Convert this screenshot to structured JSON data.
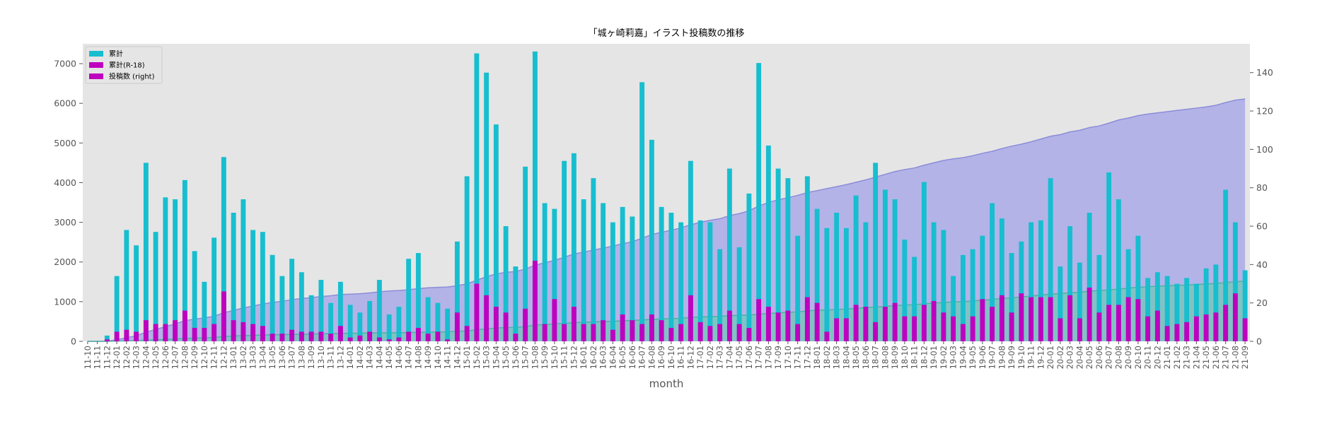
{
  "chart_data": {
    "type": "bar",
    "title": "「城ヶ崎莉嘉」イラスト投稿数の推移",
    "xlabel": "month",
    "ylabel": "",
    "ylim": [
      0,
      7500
    ],
    "y2lim": [
      0,
      155
    ],
    "yticks": [
      0,
      1000,
      2000,
      3000,
      4000,
      5000,
      6000,
      7000
    ],
    "y2ticks": [
      0,
      20,
      40,
      60,
      80,
      100,
      120,
      140
    ],
    "grid": false,
    "legend_position": "top-left",
    "colors": {
      "plot_bg": "#e5e5e5",
      "bar_total": "#17becf",
      "bar_r18": "#bf00bf",
      "area_total": "#b3b3e8",
      "area_total_line": "#8c8cd9",
      "area_r18": "#73c7b8",
      "area_r18_line": "#4db3a0"
    },
    "categories": [
      "11-10",
      "11-11",
      "11-12",
      "12-01",
      "12-02",
      "12-03",
      "12-04",
      "12-05",
      "12-06",
      "12-07",
      "12-08",
      "12-09",
      "12-10",
      "12-11",
      "12-12",
      "13-01",
      "13-02",
      "13-03",
      "13-04",
      "13-05",
      "13-06",
      "13-07",
      "13-08",
      "13-09",
      "13-10",
      "13-11",
      "13-12",
      "14-01",
      "14-02",
      "14-03",
      "14-04",
      "14-05",
      "14-06",
      "14-07",
      "14-08",
      "14-09",
      "14-10",
      "14-11",
      "14-12",
      "15-01",
      "15-02",
      "15-03",
      "15-04",
      "15-05",
      "15-06",
      "15-07",
      "15-08",
      "15-09",
      "15-10",
      "15-11",
      "15-12",
      "16-01",
      "16-02",
      "16-03",
      "16-04",
      "16-05",
      "16-06",
      "16-07",
      "16-08",
      "16-09",
      "16-10",
      "16-11",
      "16-12",
      "17-01",
      "17-02",
      "17-03",
      "17-04",
      "17-05",
      "17-06",
      "17-07",
      "17-08",
      "17-09",
      "17-10",
      "17-11",
      "17-12",
      "18-01",
      "18-02",
      "18-03",
      "18-04",
      "18-05",
      "18-06",
      "18-07",
      "18-08",
      "18-09",
      "18-10",
      "18-11",
      "18-12",
      "19-01",
      "19-02",
      "19-03",
      "19-04",
      "19-05",
      "19-06",
      "19-07",
      "19-08",
      "19-09",
      "19-10",
      "19-11",
      "19-12",
      "20-01",
      "20-02",
      "20-03",
      "20-04",
      "20-05",
      "20-06",
      "20-07",
      "20-08",
      "20-09",
      "20-10",
      "20-11",
      "20-12",
      "21-01",
      "21-02",
      "21-03",
      "21-04",
      "21-05",
      "21-06",
      "21-07",
      "21-08",
      "21-09"
    ],
    "series": [
      {
        "name": "累計",
        "kind": "bar",
        "axis": "right",
        "values": [
          0,
          0,
          3,
          34,
          58,
          50,
          93,
          57,
          75,
          74,
          84,
          47,
          31,
          54,
          96,
          67,
          74,
          58,
          57,
          45,
          34,
          43,
          36,
          24,
          32,
          20,
          31,
          19,
          15,
          21,
          32,
          14,
          18,
          43,
          46,
          23,
          20,
          17,
          52,
          86,
          150,
          140,
          113,
          60,
          39,
          91,
          151,
          72,
          69,
          94,
          98,
          74,
          85,
          72,
          62,
          70,
          65,
          135,
          105,
          70,
          67,
          62,
          94,
          63,
          62,
          48,
          90,
          49,
          77,
          145,
          102,
          90,
          85,
          55,
          86,
          69,
          59,
          67,
          59,
          76,
          62,
          93,
          79,
          74,
          53,
          44,
          83,
          62,
          58,
          34,
          45,
          48,
          55,
          72,
          64,
          46,
          52,
          62,
          63,
          85,
          39,
          60,
          41,
          67,
          45,
          88,
          74,
          48,
          55,
          33,
          36,
          34,
          30,
          33,
          30,
          38,
          40,
          79,
          62,
          37
        ]
      },
      {
        "name": "累計(R-18)",
        "kind": "bar",
        "axis": "right",
        "values": [
          0,
          0,
          1,
          5,
          6,
          5,
          11,
          9,
          9,
          11,
          16,
          7,
          7,
          9,
          26,
          11,
          10,
          9,
          8,
          4,
          4,
          6,
          5,
          5,
          5,
          4,
          8,
          2,
          3,
          5,
          2,
          1,
          2,
          5,
          7,
          4,
          5,
          1,
          15,
          8,
          30,
          24,
          18,
          15,
          4,
          17,
          42,
          9,
          22,
          9,
          18,
          9,
          9,
          11,
          6,
          14,
          11,
          9,
          14,
          11,
          7,
          9,
          24,
          10,
          8,
          9,
          16,
          9,
          7,
          22,
          18,
          15,
          16,
          9,
          23,
          20,
          5,
          12,
          12,
          19,
          18,
          10,
          18,
          20,
          13,
          13,
          19,
          21,
          15,
          13,
          9,
          13,
          22,
          18,
          24,
          15,
          25,
          23,
          23,
          23,
          12,
          24,
          12,
          28,
          15,
          19,
          19,
          23,
          22,
          13,
          16,
          8,
          9,
          10,
          13,
          14,
          15,
          19,
          25,
          12
        ]
      },
      {
        "name": "投稿数 (right)",
        "kind": "area",
        "axis": "left",
        "values": [
          0,
          0,
          5,
          40,
          90,
          140,
          230,
          300,
          370,
          440,
          520,
          560,
          590,
          630,
          720,
          780,
          840,
          890,
          940,
          980,
          1010,
          1050,
          1080,
          1100,
          1130,
          1150,
          1180,
          1190,
          1200,
          1220,
          1250,
          1270,
          1280,
          1300,
          1330,
          1350,
          1360,
          1370,
          1400,
          1450,
          1540,
          1630,
          1700,
          1740,
          1760,
          1820,
          1920,
          1980,
          2040,
          2120,
          2200,
          2250,
          2300,
          2350,
          2400,
          2460,
          2510,
          2600,
          2690,
          2750,
          2800,
          2860,
          2940,
          3000,
          3050,
          3090,
          3170,
          3220,
          3290,
          3410,
          3500,
          3570,
          3620,
          3680,
          3750,
          3800,
          3850,
          3900,
          3950,
          4010,
          4070,
          4140,
          4210,
          4280,
          4330,
          4370,
          4440,
          4500,
          4560,
          4600,
          4630,
          4680,
          4740,
          4790,
          4860,
          4920,
          4970,
          5030,
          5100,
          5170,
          5210,
          5280,
          5320,
          5390,
          5430,
          5500,
          5580,
          5630,
          5690,
          5730,
          5760,
          5790,
          5820,
          5850,
          5880,
          5910,
          5950,
          6020,
          6080,
          6110
        ]
      },
      {
        "name": "",
        "kind": "area",
        "axis": "left",
        "values": [
          0,
          0,
          1,
          6,
          12,
          17,
          28,
          37,
          46,
          57,
          73,
          80,
          87,
          96,
          122,
          133,
          143,
          152,
          160,
          164,
          168,
          174,
          179,
          184,
          189,
          193,
          201,
          203,
          206,
          211,
          213,
          214,
          216,
          221,
          228,
          232,
          237,
          238,
          253,
          261,
          291,
          315,
          333,
          348,
          352,
          369,
          411,
          420,
          442,
          451,
          469,
          478,
          487,
          498,
          504,
          518,
          529,
          538,
          552,
          563,
          570,
          579,
          603,
          613,
          621,
          630,
          646,
          655,
          662,
          684,
          702,
          717,
          733,
          742,
          765,
          785,
          790,
          802,
          814,
          833,
          851,
          861,
          879,
          899,
          912,
          925,
          944,
          965,
          980,
          993,
          1002,
          1015,
          1037,
          1055,
          1079,
          1094,
          1119,
          1142,
          1165,
          1188,
          1200,
          1224,
          1236,
          1264,
          1279,
          1298,
          1317,
          1340,
          1362,
          1375,
          1391,
          1399,
          1408,
          1418,
          1431,
          1445,
          1460,
          1479,
          1504,
          1516
        ]
      }
    ]
  }
}
